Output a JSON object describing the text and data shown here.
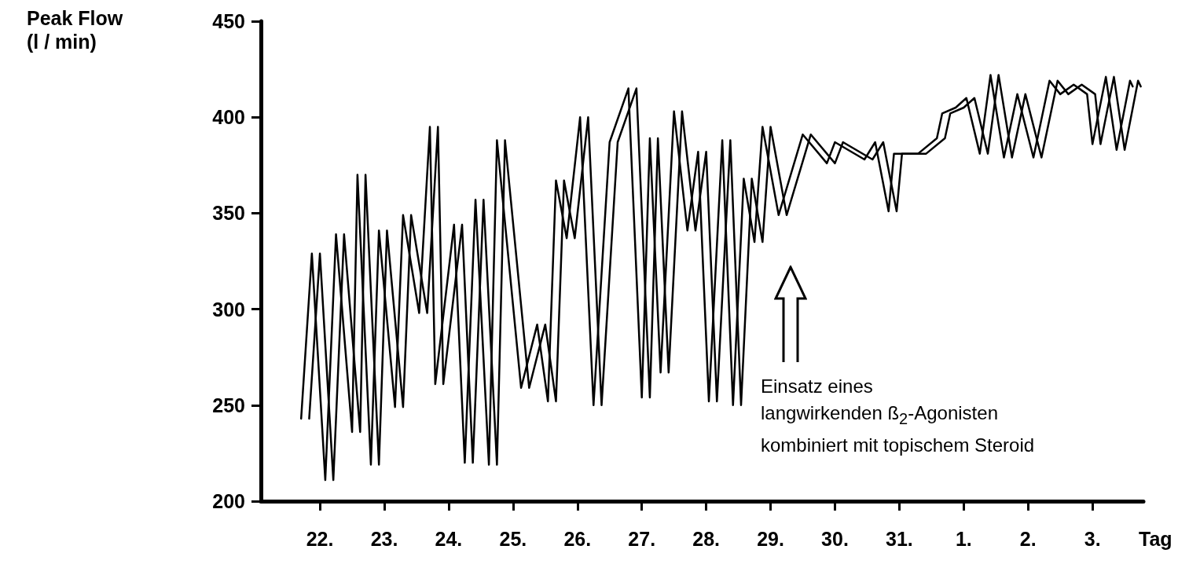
{
  "chart_data": {
    "type": "line",
    "ylabel": "Peak Flow\n(l / min)",
    "xlabel": "Tag",
    "annotations": [
      "Einsatz eines\nlangwirkenden ß$_{2}$-Agonisten\nkombiniert mit topischem Steroid"
    ],
    "xlim": [
      "--01-21T02:00",
      "--02-03T19:00"
    ],
    "xticks": [
      {
        "value": "--01-22",
        "label": "22."
      },
      {
        "value": "--01-23",
        "label": "23."
      },
      {
        "value": "--01-24",
        "label": "24."
      },
      {
        "value": "--01-25",
        "label": "25."
      },
      {
        "value": "--01-26",
        "label": "26."
      },
      {
        "value": "--01-27",
        "label": "27."
      },
      {
        "value": "--01-28",
        "label": "28."
      },
      {
        "value": "--01-29",
        "label": "29."
      },
      {
        "value": "--01-30",
        "label": "30."
      },
      {
        "value": "--01-31",
        "label": "31."
      },
      {
        "value": "--02-01",
        "label": "1."
      },
      {
        "value": "--02-02",
        "label": "2."
      },
      {
        "value": "--02-03",
        "label": "3."
      }
    ],
    "ylim": [
      200,
      450
    ],
    "yticks": [
      200,
      250,
      300,
      350,
      400,
      450
    ],
    "grid": false,
    "marker": "none",
    "line_style": "solid",
    "series": [
      {
        "color": "#000000",
        "x": [
          "--01-21T17:00",
          "--01-21T21:00",
          "--01-22T02:00",
          "--01-22T06:00",
          "--01-22T12:00",
          "--01-22T14:00",
          "--01-22T19:00",
          "--01-22T22:00",
          "--01-23T04:00",
          "--01-23T07:00",
          "--01-23T13:00",
          "--01-23T17:00",
          "--01-23T19:00",
          "--01-24T02:00",
          "--01-24T06:00",
          "--01-24T10:00",
          "--01-24T15:00",
          "--01-24T18:00",
          "--01-25T03:00",
          "--01-25T09:00",
          "--01-25T13:00",
          "--01-25T16:00",
          "--01-25T20:00",
          "--01-26T01:00",
          "--01-26T06:00",
          "--01-26T12:00",
          "--01-26T19:00",
          "--01-27T00:00",
          "--01-27T03:00",
          "--01-27T07:00",
          "--01-27T12:00",
          "--01-27T17:00",
          "--01-27T21:00",
          "--01-28T01:00",
          "--01-28T06:00",
          "--01-28T10:00",
          "--01-28T14:00",
          "--01-28T18:00",
          "--01-28T21:00",
          "--01-29T03:00",
          "--01-29T12:00",
          "--01-29T21:00",
          "--01-30T00:00",
          "--01-30T11:00",
          "--01-30T15:00",
          "--01-30T20:00",
          "--01-30T22:00",
          "--01-31T07:00",
          "--01-31T14:00",
          "--01-31T16:00",
          "--01-31T21:00",
          "--02-01T01:00",
          "--02-01T06:00",
          "--02-01T10:00",
          "--02-01T15:00",
          "--02-01T20:00",
          "--02-02T02:00",
          "--02-02T08:00",
          "--02-02T12:00",
          "--02-02T17:00",
          "--02-02T22:00",
          "--02-03T00:00",
          "--02-03T05:00",
          "--02-03T09:00",
          "--02-03T14:00",
          "--02-03T15:00"
        ],
        "values": [
          243,
          329,
          211,
          339,
          236,
          370,
          219,
          341,
          249,
          349,
          298,
          395,
          261,
          344,
          220,
          357,
          219,
          388,
          259,
          292,
          252,
          367,
          337,
          400,
          250,
          387,
          415,
          254,
          389,
          267,
          403,
          341,
          382,
          252,
          388,
          250,
          368,
          335,
          395,
          349,
          391,
          376,
          387,
          378,
          387,
          351,
          381,
          381,
          389,
          402,
          405,
          410,
          381,
          422,
          379,
          412,
          379,
          419,
          412,
          417,
          412,
          386,
          421,
          383,
          419,
          416
        ]
      },
      {
        "color": "#000000",
        "x": [
          "--01-21T20:00",
          "--01-22T00:00",
          "--01-22T05:00",
          "--01-22T09:00",
          "--01-22T15:00",
          "--01-22T17:00",
          "--01-22T22:00",
          "--01-23T01:00",
          "--01-23T07:00",
          "--01-23T10:00",
          "--01-23T16:00",
          "--01-23T20:00",
          "--01-23T22:00",
          "--01-24T05:00",
          "--01-24T09:00",
          "--01-24T13:00",
          "--01-24T18:00",
          "--01-24T21:00",
          "--01-25T06:00",
          "--01-25T12:00",
          "--01-25T16:00",
          "--01-25T19:00",
          "--01-25T23:00",
          "--01-26T04:00",
          "--01-26T09:00",
          "--01-26T15:00",
          "--01-26T22:00",
          "--01-27T03:00",
          "--01-27T06:00",
          "--01-27T10:00",
          "--01-27T15:00",
          "--01-27T20:00",
          "--01-28T00:00",
          "--01-28T04:00",
          "--01-28T09:00",
          "--01-28T13:00",
          "--01-28T17:00",
          "--01-28T21:00",
          "--01-29T00:00",
          "--01-29T06:00",
          "--01-29T15:00",
          "--01-30T00:00",
          "--01-30T03:00",
          "--01-30T14:00",
          "--01-30T18:00",
          "--01-30T23:00",
          "--01-31T01:00",
          "--01-31T10:00",
          "--01-31T17:00",
          "--01-31T19:00",
          "--02-01T00:00",
          "--02-01T04:00",
          "--02-01T09:00",
          "--02-01T13:00",
          "--02-01T18:00",
          "--02-01T23:00",
          "--02-02T05:00",
          "--02-02T11:00",
          "--02-02T15:00",
          "--02-02T20:00",
          "--02-03T01:00",
          "--02-03T03:00",
          "--02-03T08:00",
          "--02-03T12:00",
          "--02-03T17:00",
          "--02-03T18:00"
        ],
        "values": [
          243,
          329,
          211,
          339,
          236,
          370,
          219,
          341,
          249,
          349,
          298,
          395,
          261,
          344,
          220,
          357,
          219,
          388,
          259,
          292,
          252,
          367,
          337,
          400,
          250,
          387,
          415,
          254,
          389,
          267,
          403,
          341,
          382,
          252,
          388,
          250,
          368,
          335,
          395,
          349,
          391,
          376,
          387,
          378,
          387,
          351,
          381,
          381,
          389,
          402,
          405,
          410,
          381,
          422,
          379,
          412,
          379,
          419,
          412,
          417,
          412,
          386,
          421,
          383,
          419,
          416
        ]
      }
    ]
  }
}
